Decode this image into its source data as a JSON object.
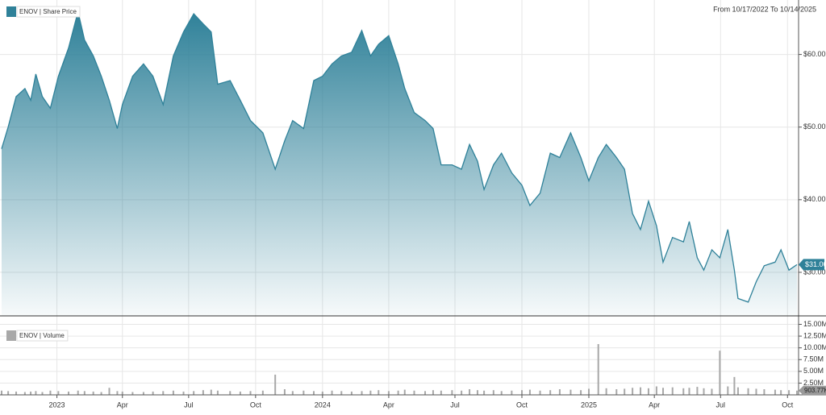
{
  "chart_data": [
    {
      "type": "area",
      "subtitle": "From 10/17/2022 To 10/14/2025",
      "x": [
        "2022-10-17",
        "2022-10-26",
        "2022-11-06",
        "2022-11-18",
        "2022-11-26",
        "2022-12-03",
        "2022-12-12",
        "2022-12-23",
        "2023-01-03",
        "2023-01-17",
        "2023-01-30",
        "2023-02-08",
        "2023-02-20",
        "2023-03-03",
        "2023-03-14",
        "2023-03-25",
        "2023-04-01",
        "2023-04-15",
        "2023-04-30",
        "2023-05-13",
        "2023-05-27",
        "2023-06-10",
        "2023-06-24",
        "2023-07-08",
        "2023-07-21",
        "2023-08-01",
        "2023-08-10",
        "2023-08-27",
        "2023-09-10",
        "2023-09-24",
        "2023-10-11",
        "2023-10-28",
        "2023-11-10",
        "2023-11-21",
        "2023-12-06",
        "2023-12-20",
        "2024-01-01",
        "2024-01-14",
        "2024-01-27",
        "2024-02-10",
        "2024-02-24",
        "2024-03-07",
        "2024-03-18",
        "2024-04-01",
        "2024-04-14",
        "2024-04-23",
        "2024-05-06",
        "2024-05-21",
        "2024-06-01",
        "2024-06-12",
        "2024-06-27",
        "2024-07-10",
        "2024-07-21",
        "2024-08-01",
        "2024-08-10",
        "2024-08-23",
        "2024-09-03",
        "2024-09-17",
        "2024-10-01",
        "2024-10-12",
        "2024-10-26",
        "2024-11-09",
        "2024-11-22",
        "2024-12-07",
        "2024-12-21",
        "2025-01-01",
        "2025-01-14",
        "2025-01-25",
        "2025-02-08",
        "2025-02-19",
        "2025-03-02",
        "2025-03-13",
        "2025-03-24",
        "2025-04-04",
        "2025-04-13",
        "2025-04-26",
        "2025-05-11",
        "2025-05-19",
        "2025-05-30",
        "2025-06-08",
        "2025-06-19",
        "2025-06-30",
        "2025-07-11",
        "2025-07-20",
        "2025-07-25",
        "2025-08-08",
        "2025-08-19",
        "2025-08-30",
        "2025-09-14",
        "2025-09-22",
        "2025-10-03",
        "2025-10-14"
      ],
      "series": [
        {
          "name": "ENOV | Share Price",
          "color": "#2f8199",
          "values": [
            47.0,
            50.0,
            54.2,
            55.3,
            53.7,
            57.3,
            54.2,
            52.6,
            57.0,
            60.9,
            65.9,
            62.0,
            59.8,
            57.0,
            53.7,
            49.8,
            53.1,
            57.0,
            58.7,
            57.0,
            53.1,
            59.8,
            63.1,
            65.6,
            64.2,
            63.1,
            55.9,
            56.4,
            53.7,
            50.9,
            49.2,
            44.2,
            48.1,
            50.9,
            49.8,
            56.4,
            57.0,
            58.7,
            59.8,
            60.3,
            63.3,
            59.8,
            61.4,
            62.6,
            58.7,
            55.3,
            52.0,
            50.9,
            49.8,
            44.8,
            44.8,
            44.2,
            47.6,
            45.3,
            41.4,
            44.8,
            46.4,
            43.7,
            42.0,
            39.2,
            40.9,
            46.4,
            45.8,
            49.2,
            45.8,
            42.6,
            45.8,
            47.6,
            45.8,
            44.2,
            38.1,
            35.9,
            39.8,
            36.4,
            31.4,
            34.8,
            34.2,
            37.0,
            32.0,
            30.3,
            33.1,
            32.0,
            35.9,
            30.3,
            26.4,
            25.9,
            28.7,
            30.9,
            31.4,
            33.1,
            30.3,
            31.06
          ]
        }
      ],
      "last_value_label": "$31.06",
      "xlim": [
        "2022-10-17",
        "2025-10-14"
      ],
      "xticks": [
        {
          "value": "2023-01-01",
          "label": "2023"
        },
        {
          "value": "2023-04-01",
          "label": "Apr"
        },
        {
          "value": "2023-07-01",
          "label": "Jul"
        },
        {
          "value": "2023-10-01",
          "label": "Oct"
        },
        {
          "value": "2024-01-01",
          "label": "2024"
        },
        {
          "value": "2024-04-01",
          "label": "Apr"
        },
        {
          "value": "2024-07-01",
          "label": "Jul"
        },
        {
          "value": "2024-10-01",
          "label": "Oct"
        },
        {
          "value": "2025-01-01",
          "label": "2025"
        },
        {
          "value": "2025-04-01",
          "label": "Apr"
        },
        {
          "value": "2025-07-01",
          "label": "Jul"
        },
        {
          "value": "2025-10-01",
          "label": "Oct"
        }
      ],
      "ylim": [
        24,
        67.5
      ],
      "yticks": [
        {
          "value": 30,
          "label": "$30.00"
        },
        {
          "value": 40,
          "label": "$40.00"
        },
        {
          "value": 50,
          "label": "$50.00"
        },
        {
          "value": 60,
          "label": "$60.00"
        }
      ],
      "grid": true
    },
    {
      "type": "bar",
      "x": [
        "2022-10-17",
        "2022-10-26",
        "2022-11-06",
        "2022-11-18",
        "2022-11-26",
        "2022-12-03",
        "2022-12-12",
        "2022-12-23",
        "2023-01-03",
        "2023-01-17",
        "2023-01-30",
        "2023-02-08",
        "2023-02-20",
        "2023-03-03",
        "2023-03-14",
        "2023-03-25",
        "2023-04-01",
        "2023-04-15",
        "2023-04-30",
        "2023-05-13",
        "2023-05-27",
        "2023-06-10",
        "2023-06-24",
        "2023-07-08",
        "2023-07-21",
        "2023-08-01",
        "2023-08-10",
        "2023-08-27",
        "2023-09-10",
        "2023-09-24",
        "2023-10-11",
        "2023-10-28",
        "2023-11-10",
        "2023-11-21",
        "2023-12-06",
        "2023-12-20",
        "2024-01-01",
        "2024-01-14",
        "2024-01-27",
        "2024-02-10",
        "2024-02-24",
        "2024-03-07",
        "2024-03-18",
        "2024-04-01",
        "2024-04-14",
        "2024-04-23",
        "2024-05-06",
        "2024-05-21",
        "2024-06-01",
        "2024-06-12",
        "2024-06-27",
        "2024-07-10",
        "2024-07-21",
        "2024-08-01",
        "2024-08-10",
        "2024-08-23",
        "2024-09-03",
        "2024-09-17",
        "2024-10-01",
        "2024-10-12",
        "2024-10-26",
        "2024-11-09",
        "2024-11-22",
        "2024-12-07",
        "2024-12-21",
        "2025-01-01",
        "2025-01-14",
        "2025-01-25",
        "2025-02-08",
        "2025-02-19",
        "2025-03-02",
        "2025-03-13",
        "2025-03-24",
        "2025-04-04",
        "2025-04-13",
        "2025-04-26",
        "2025-05-11",
        "2025-05-19",
        "2025-05-30",
        "2025-06-08",
        "2025-06-19",
        "2025-06-30",
        "2025-07-11",
        "2025-07-20",
        "2025-07-25",
        "2025-08-08",
        "2025-08-19",
        "2025-08-30",
        "2025-09-14",
        "2025-09-22",
        "2025-10-03",
        "2025-10-14"
      ],
      "series": [
        {
          "name": "ENOV | Volume",
          "color": "#a8a8a8",
          "values": [
            0.9,
            0.8,
            0.7,
            0.6,
            0.7,
            0.8,
            0.6,
            0.9,
            0.8,
            0.7,
            0.9,
            0.8,
            0.7,
            0.6,
            1.5,
            0.8,
            0.7,
            0.6,
            0.6,
            0.7,
            0.8,
            0.9,
            0.7,
            0.8,
            1.0,
            1.1,
            0.9,
            0.8,
            0.7,
            0.8,
            0.9,
            4.3,
            1.2,
            0.8,
            0.9,
            0.8,
            0.7,
            0.9,
            0.8,
            0.7,
            0.8,
            0.9,
            1.0,
            0.8,
            0.9,
            1.1,
            0.9,
            0.8,
            1.0,
            0.9,
            1.0,
            0.9,
            1.2,
            1.0,
            0.9,
            1.0,
            0.8,
            0.9,
            1.0,
            1.1,
            0.9,
            1.0,
            1.2,
            1.1,
            1.0,
            1.3,
            10.8,
            1.4,
            1.2,
            1.3,
            1.5,
            1.6,
            1.4,
            1.8,
            1.5,
            1.6,
            1.4,
            1.5,
            1.7,
            1.4,
            1.3,
            9.4,
            1.8,
            3.8,
            1.6,
            1.4,
            1.3,
            1.2,
            1.1,
            1.0,
            1.0,
            0.90377
          ]
        }
      ],
      "last_value_label": "903.77K",
      "ylim": [
        0,
        16.8
      ],
      "yticks": [
        {
          "value": 2.5,
          "label": "2.50M"
        },
        {
          "value": 5,
          "label": "5.00M"
        },
        {
          "value": 7.5,
          "label": "7.50M"
        },
        {
          "value": 10,
          "label": "10.00M"
        },
        {
          "value": 12.5,
          "label": "12.50M"
        },
        {
          "value": 15,
          "label": "15.00M"
        }
      ],
      "grid": true
    }
  ]
}
